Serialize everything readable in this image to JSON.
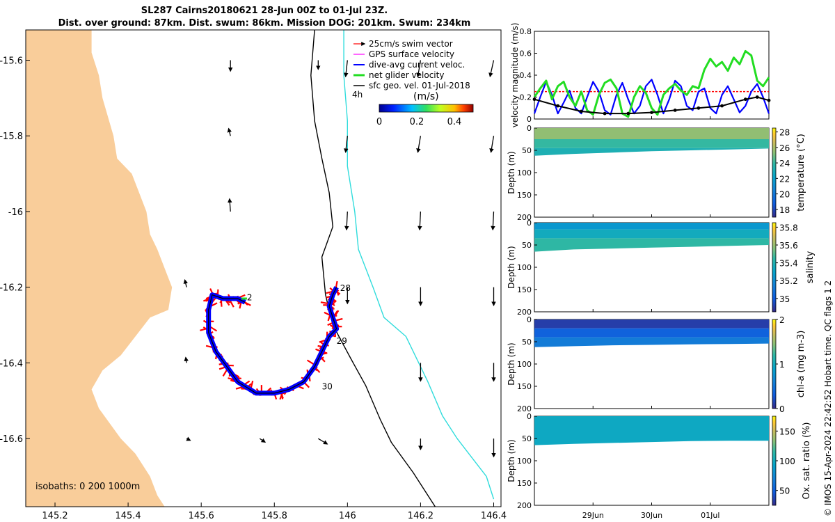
{
  "header": {
    "title_line1": "SL287 Cairns20180621 28-Jun 00Z to 01-Jul 23Z.",
    "title_line2": "Dist. over ground: 87km. Dist. swum: 86km. Mission DOG: 201km. Swum: 234km"
  },
  "credit": "© IMOS 15-Apr-2024 22:42:52 Hobart time. QC flags 1  2",
  "colors": {
    "land": "#f9cd9a",
    "track": "#0000ff",
    "swim": "#ff0000",
    "net": "#22dd22",
    "geo": "#000000",
    "iso200": "#000000",
    "iso1000": "#30dcdc",
    "ref": "#ff0000"
  },
  "map": {
    "legend": [
      "25cm/s swim vector",
      "GPS surface velocity",
      "dive-avg current veloc.",
      "net glider velocity",
      "sfc geo. vel. 01-Jul-2018"
    ],
    "time_label": "4h",
    "colorbar_title": "(m/s)",
    "colorbar_ticks": [
      "0",
      "0.2",
      "0.4"
    ],
    "isobaths_label": "isobaths: 0   200  1000m",
    "day_labels": [
      "2",
      "28",
      "29",
      "30"
    ]
  },
  "chart_data": [
    {
      "type": "map",
      "title": "Glider track and velocities",
      "xlim": [
        145.12,
        146.42
      ],
      "ylim": [
        -16.78,
        -15.52
      ],
      "x_ticks": [
        "145.2",
        "145.4",
        "145.6",
        "145.8",
        "146",
        "146.2",
        "146.4"
      ],
      "y_ticks": [
        "-15.6",
        "-15.8",
        "-16",
        "-16.2",
        "-16.4",
        "-16.6"
      ],
      "coastline": [
        [
          145.12,
          -15.52
        ],
        [
          145.3,
          -15.52
        ],
        [
          145.3,
          -15.58
        ],
        [
          145.32,
          -15.64
        ],
        [
          145.33,
          -15.7
        ],
        [
          145.36,
          -15.8
        ],
        [
          145.37,
          -15.86
        ],
        [
          145.41,
          -15.9
        ],
        [
          145.43,
          -15.95
        ],
        [
          145.45,
          -16
        ],
        [
          145.46,
          -16.06
        ],
        [
          145.48,
          -16.1
        ],
        [
          145.5,
          -16.15
        ],
        [
          145.52,
          -16.2
        ],
        [
          145.51,
          -16.26
        ],
        [
          145.46,
          -16.28
        ],
        [
          145.42,
          -16.33
        ],
        [
          145.38,
          -16.38
        ],
        [
          145.33,
          -16.42
        ],
        [
          145.3,
          -16.47
        ],
        [
          145.32,
          -16.52
        ],
        [
          145.35,
          -16.56
        ],
        [
          145.38,
          -16.6
        ],
        [
          145.42,
          -16.64
        ],
        [
          145.46,
          -16.7
        ],
        [
          145.48,
          -16.75
        ],
        [
          145.5,
          -16.78
        ],
        [
          145.12,
          -16.78
        ]
      ],
      "isobath_200": [
        [
          145.91,
          -15.52
        ],
        [
          145.9,
          -15.64
        ],
        [
          145.91,
          -15.76
        ],
        [
          145.93,
          -15.86
        ],
        [
          145.95,
          -15.95
        ],
        [
          145.96,
          -16.04
        ],
        [
          145.93,
          -16.12
        ],
        [
          145.94,
          -16.22
        ],
        [
          145.96,
          -16.3
        ],
        [
          146.01,
          -16.39
        ],
        [
          146.05,
          -16.46
        ],
        [
          146.09,
          -16.55
        ],
        [
          146.12,
          -16.61
        ],
        [
          146.18,
          -16.69
        ],
        [
          146.24,
          -16.78
        ]
      ],
      "isobath_1000": [
        [
          145.99,
          -15.52
        ],
        [
          145.99,
          -15.64
        ],
        [
          146,
          -15.76
        ],
        [
          146,
          -15.88
        ],
        [
          146.02,
          -16
        ],
        [
          146.03,
          -16.1
        ],
        [
          146.07,
          -16.2
        ],
        [
          146.1,
          -16.28
        ],
        [
          146.16,
          -16.33
        ],
        [
          146.22,
          -16.45
        ],
        [
          146.26,
          -16.54
        ],
        [
          146.3,
          -16.6
        ],
        [
          146.34,
          -16.65
        ],
        [
          146.38,
          -16.7
        ],
        [
          146.4,
          -16.76
        ]
      ],
      "glider_track": [
        [
          145.72,
          -16.24
        ],
        [
          145.7,
          -16.23
        ],
        [
          145.66,
          -16.23
        ],
        [
          145.63,
          -16.22
        ],
        [
          145.62,
          -16.26
        ],
        [
          145.62,
          -16.32
        ],
        [
          145.64,
          -16.37
        ],
        [
          145.67,
          -16.41
        ],
        [
          145.7,
          -16.45
        ],
        [
          145.75,
          -16.48
        ],
        [
          145.8,
          -16.48
        ],
        [
          145.84,
          -16.47
        ],
        [
          145.88,
          -16.45
        ],
        [
          145.91,
          -16.41
        ],
        [
          145.93,
          -16.37
        ],
        [
          145.95,
          -16.33
        ],
        [
          145.97,
          -16.31
        ],
        [
          145.96,
          -16.28
        ],
        [
          145.95,
          -16.25
        ],
        [
          145.96,
          -16.22
        ],
        [
          145.97,
          -16.2
        ]
      ],
      "net_velocity_start": [
        145.71,
        -16.23
      ],
      "geo_vectors": [
        {
          "lon": 145.68,
          "lat": -15.6,
          "u": 0.0,
          "v": -0.12
        },
        {
          "lon": 145.92,
          "lat": -15.6,
          "u": 0.0,
          "v": -0.1
        },
        {
          "lon": 146.0,
          "lat": -15.6,
          "u": -0.02,
          "v": -0.18
        },
        {
          "lon": 146.2,
          "lat": -15.6,
          "u": -0.03,
          "v": -0.18
        },
        {
          "lon": 146.4,
          "lat": -15.6,
          "u": -0.04,
          "v": -0.18
        },
        {
          "lon": 145.68,
          "lat": -15.8,
          "u": -0.02,
          "v": 0.08
        },
        {
          "lon": 146.0,
          "lat": -15.8,
          "u": -0.02,
          "v": -0.18
        },
        {
          "lon": 146.2,
          "lat": -15.8,
          "u": -0.03,
          "v": -0.18
        },
        {
          "lon": 146.4,
          "lat": -15.8,
          "u": -0.03,
          "v": -0.18
        },
        {
          "lon": 145.68,
          "lat": -16.0,
          "u": -0.01,
          "v": 0.14
        },
        {
          "lon": 146.0,
          "lat": -16.0,
          "u": -0.01,
          "v": -0.2
        },
        {
          "lon": 146.2,
          "lat": -16.0,
          "u": -0.01,
          "v": -0.2
        },
        {
          "lon": 146.4,
          "lat": -16.0,
          "u": -0.01,
          "v": -0.2
        },
        {
          "lon": 146.0,
          "lat": -16.2,
          "u": 0.0,
          "v": -0.18
        },
        {
          "lon": 146.2,
          "lat": -16.2,
          "u": 0.0,
          "v": -0.2
        },
        {
          "lon": 146.4,
          "lat": -16.2,
          "u": 0.0,
          "v": -0.2
        },
        {
          "lon": 146.2,
          "lat": -16.4,
          "u": 0.0,
          "v": -0.2
        },
        {
          "lon": 146.4,
          "lat": -16.4,
          "u": 0.0,
          "v": -0.2
        },
        {
          "lon": 145.92,
          "lat": -16.6,
          "u": 0.1,
          "v": -0.06
        },
        {
          "lon": 145.76,
          "lat": -16.6,
          "u": 0.06,
          "v": -0.04
        },
        {
          "lon": 145.56,
          "lat": -16.6,
          "u": 0.04,
          "v": -0.02
        },
        {
          "lon": 146.2,
          "lat": -16.6,
          "u": 0.0,
          "v": -0.12
        },
        {
          "lon": 146.4,
          "lat": -16.6,
          "u": 0.0,
          "v": -0.2
        },
        {
          "lon": 145.56,
          "lat": -16.4,
          "u": -0.01,
          "v": 0.06
        },
        {
          "lon": 145.56,
          "lat": -16.2,
          "u": -0.02,
          "v": 0.08
        }
      ]
    },
    {
      "type": "line",
      "ylabel": "velocity magnitude (m/s)",
      "ylim": [
        0,
        0.8
      ],
      "y_ticks": [
        "0",
        "0.2",
        "0.4",
        "0.6",
        "0.8"
      ],
      "x_ticks": [
        "29Jun",
        "30Jun",
        "01Jul"
      ],
      "x_days": [
        0,
        4
      ],
      "reference_line": 0.25,
      "series": [
        {
          "name": "dive-avg current veloc.",
          "x": [
            0,
            0.1,
            0.2,
            0.3,
            0.4,
            0.5,
            0.6,
            0.7,
            0.8,
            0.9,
            1,
            1.1,
            1.2,
            1.3,
            1.4,
            1.5,
            1.6,
            1.7,
            1.8,
            1.9,
            2,
            2.1,
            2.2,
            2.3,
            2.4,
            2.5,
            2.6,
            2.7,
            2.8,
            2.9,
            3,
            3.1,
            3.2,
            3.3,
            3.4,
            3.5,
            3.6,
            3.7,
            3.8,
            3.9,
            4
          ],
          "values": [
            0.05,
            0.2,
            0.34,
            0.22,
            0.05,
            0.15,
            0.26,
            0.1,
            0.05,
            0.2,
            0.34,
            0.25,
            0.08,
            0.04,
            0.22,
            0.33,
            0.18,
            0.05,
            0.12,
            0.3,
            0.36,
            0.22,
            0.05,
            0.18,
            0.35,
            0.3,
            0.12,
            0.08,
            0.25,
            0.28,
            0.1,
            0.05,
            0.22,
            0.3,
            0.18,
            0.06,
            0.12,
            0.25,
            0.32,
            0.2,
            0.05
          ]
        },
        {
          "name": "net glider velocity",
          "x": [
            0,
            0.1,
            0.2,
            0.3,
            0.4,
            0.5,
            0.6,
            0.7,
            0.8,
            0.9,
            1,
            1.1,
            1.2,
            1.3,
            1.4,
            1.5,
            1.6,
            1.7,
            1.8,
            1.9,
            2,
            2.1,
            2.2,
            2.3,
            2.4,
            2.5,
            2.6,
            2.7,
            2.8,
            2.9,
            3,
            3.1,
            3.2,
            3.3,
            3.4,
            3.5,
            3.6,
            3.7,
            3.8,
            3.9,
            4
          ],
          "values": [
            0.2,
            0.28,
            0.35,
            0.18,
            0.3,
            0.34,
            0.2,
            0.12,
            0.25,
            0.08,
            0.04,
            0.22,
            0.33,
            0.36,
            0.28,
            0.05,
            0.02,
            0.2,
            0.3,
            0.24,
            0.1,
            0.04,
            0.22,
            0.28,
            0.32,
            0.26,
            0.22,
            0.3,
            0.28,
            0.45,
            0.55,
            0.48,
            0.52,
            0.44,
            0.56,
            0.5,
            0.62,
            0.58,
            0.35,
            0.3,
            0.38
          ]
        },
        {
          "name": "sfc geo. vel.",
          "x": [
            0,
            0.4,
            0.8,
            1.2,
            1.6,
            2.0,
            2.4,
            2.8,
            3.2,
            3.6,
            3.8,
            4
          ],
          "values": [
            0.18,
            0.12,
            0.07,
            0.05,
            0.05,
            0.06,
            0.08,
            0.1,
            0.12,
            0.18,
            0.2,
            0.17
          ]
        }
      ]
    },
    {
      "type": "heatmap",
      "label": "temperature (°C)",
      "ylabel": "Depth (m)",
      "ylim": [
        200,
        0
      ],
      "y_ticks": [
        "0",
        "50",
        "100",
        "150",
        "200"
      ],
      "clim": [
        17,
        28.5
      ],
      "cb_ticks": [
        "18",
        "20",
        "22",
        "24",
        "26",
        "28"
      ],
      "colormap": "parula-like",
      "bands": [
        {
          "top": 0,
          "bottom": 25,
          "value": 25.5
        },
        {
          "top": 25,
          "bottom": 45,
          "value": 24.0
        },
        {
          "top": 45,
          "bottom": 62,
          "value": 23.2
        }
      ],
      "profile_max_depth": [
        62,
        58,
        55,
        52,
        50,
        48,
        46
      ]
    },
    {
      "type": "heatmap",
      "label": "salinity",
      "ylabel": "Depth (m)",
      "ylim": [
        200,
        0
      ],
      "y_ticks": [
        "0",
        "50",
        "100",
        "150",
        "200"
      ],
      "clim": [
        34.85,
        35.85
      ],
      "cb_ticks": [
        "35",
        "35.2",
        "35.4",
        "35.6",
        "35.8"
      ],
      "colormap": "parula-like",
      "bands": [
        {
          "top": 0,
          "bottom": 15,
          "value": 35.25
        },
        {
          "top": 15,
          "bottom": 35,
          "value": 35.35
        },
        {
          "top": 35,
          "bottom": 65,
          "value": 35.45
        }
      ],
      "profile_max_depth": [
        65,
        60,
        58,
        56,
        54,
        52,
        50
      ]
    },
    {
      "type": "heatmap",
      "label": "chl-a (mg m-3)",
      "ylabel": "Depth (m)",
      "ylim": [
        200,
        0
      ],
      "y_ticks": [
        "0",
        "50",
        "100",
        "150",
        "200"
      ],
      "clim": [
        0,
        2
      ],
      "cb_ticks": [
        "0",
        "1",
        "2"
      ],
      "colormap": "parula-like",
      "bands": [
        {
          "top": 0,
          "bottom": 20,
          "value": 0.12
        },
        {
          "top": 20,
          "bottom": 40,
          "value": 0.35
        },
        {
          "top": 40,
          "bottom": 65,
          "value": 0.55
        }
      ],
      "profile_max_depth": [
        62,
        60,
        58,
        57,
        56,
        55,
        54
      ]
    },
    {
      "type": "heatmap",
      "label": "Ox. sat. ratio (%)",
      "ylabel": "Depth (m)",
      "ylim": [
        200,
        0
      ],
      "y_ticks": [
        "0",
        "50",
        "100",
        "150",
        "200"
      ],
      "x_ticks": [
        "29Jun",
        "30Jun",
        "01Jul"
      ],
      "clim": [
        25,
        175
      ],
      "cb_ticks": [
        "50",
        "100",
        "150"
      ],
      "colormap": "parula-like",
      "bands": [
        {
          "top": 0,
          "bottom": 65,
          "value": 97
        }
      ],
      "profile_max_depth": [
        65,
        62,
        60,
        58,
        56,
        55,
        55
      ]
    }
  ]
}
